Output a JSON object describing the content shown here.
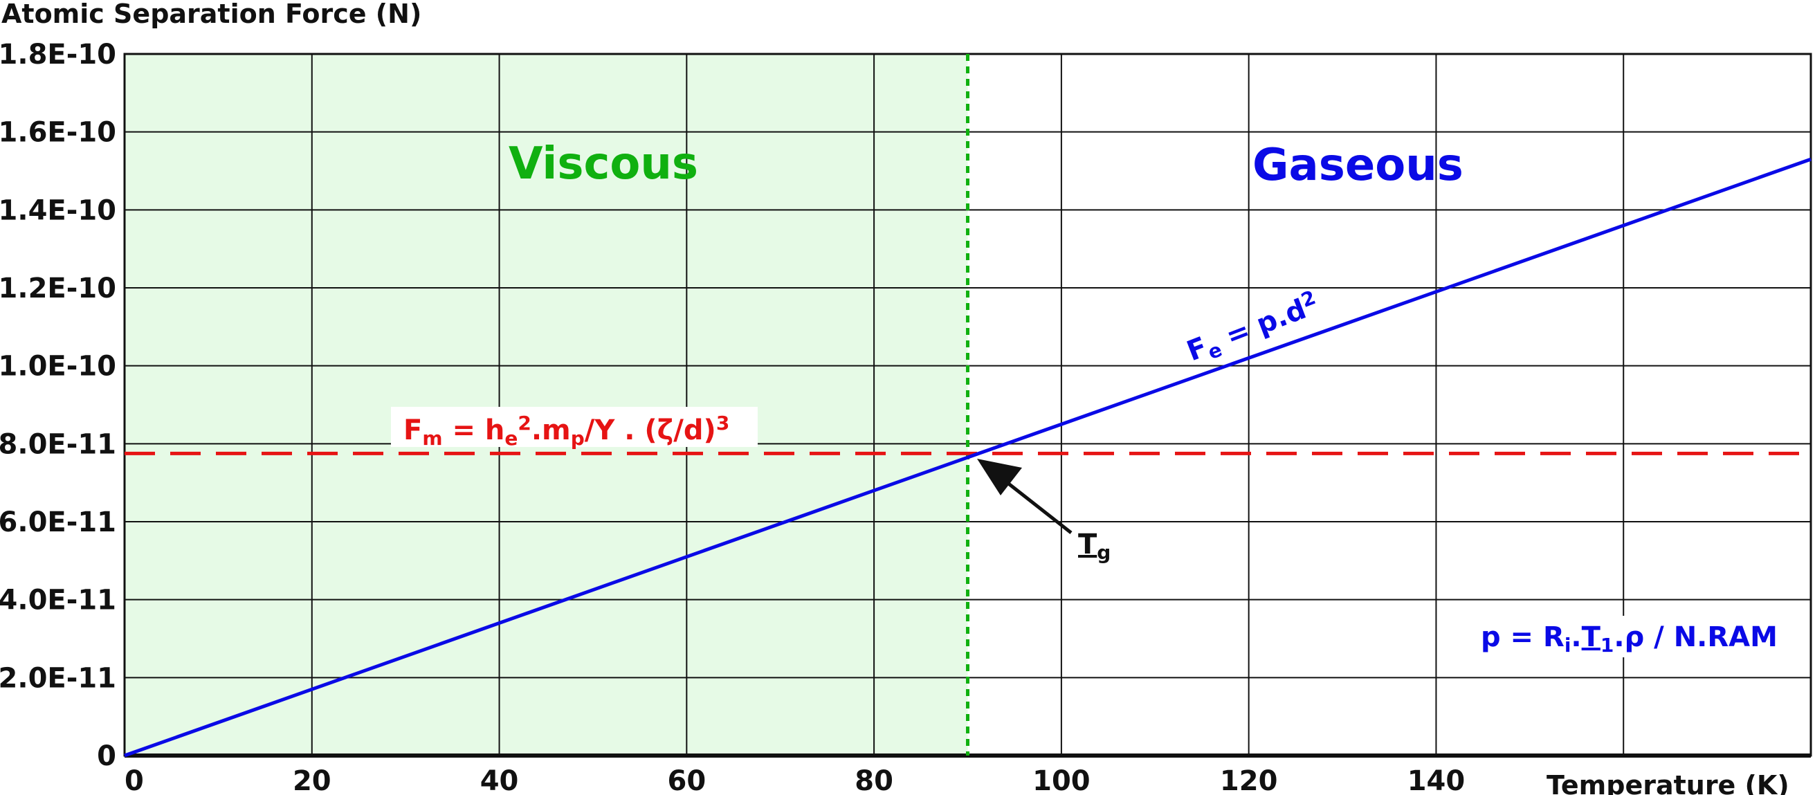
{
  "chart_data": {
    "type": "line",
    "ylabel": "Atomic Separation Force (N)",
    "xlabel": "Temperature (K)",
    "xlim": [
      0,
      180
    ],
    "ylim": [
      0,
      1.8e-10
    ],
    "x_ticks": [
      {
        "value": 0,
        "label": "0"
      },
      {
        "value": 20,
        "label": "20"
      },
      {
        "value": 40,
        "label": "40"
      },
      {
        "value": 60,
        "label": "60"
      },
      {
        "value": 80,
        "label": "80"
      },
      {
        "value": 100,
        "label": "100"
      },
      {
        "value": 120,
        "label": "120"
      },
      {
        "value": 140,
        "label": "140"
      }
    ],
    "x_gridlines": [
      20,
      40,
      60,
      80,
      100,
      120,
      140,
      160
    ],
    "y_ticks": [
      {
        "value": 0,
        "label": "0"
      },
      {
        "value": 2e-11,
        "label": "2.0E-11"
      },
      {
        "value": 4e-11,
        "label": "4.0E-11"
      },
      {
        "value": 6e-11,
        "label": "6.0E-11"
      },
      {
        "value": 8e-11,
        "label": "8.0E-11"
      },
      {
        "value": 1e-10,
        "label": "1.0E-10"
      },
      {
        "value": 1.2e-10,
        "label": "1.2E-10"
      },
      {
        "value": 1.4e-10,
        "label": "1.4E-10"
      },
      {
        "value": 1.6e-10,
        "label": "1.6E-10"
      },
      {
        "value": 1.8e-10,
        "label": "1.8E-10"
      }
    ],
    "grid": true,
    "series": [
      {
        "name": "Fe = p.d2",
        "style": "solid",
        "color": "#0a0ae6",
        "x": [
          0,
          180
        ],
        "y": [
          0,
          1.53e-10
        ]
      },
      {
        "name": "Fm = he2.mp/Y . (ζ/d)3",
        "style": "dashed",
        "color": "#e61414",
        "x": [
          0,
          180
        ],
        "y": [
          7.75e-11,
          7.75e-11
        ]
      }
    ],
    "vertical_line": {
      "x": 90,
      "style": "dotted",
      "color": "#10b010"
    },
    "shaded_region": {
      "x": [
        0,
        90
      ],
      "color": "#e6fae6"
    },
    "regions": [
      {
        "label": "Viscous",
        "color": "#10b010"
      },
      {
        "label": "Gaseous",
        "color": "#0a0ae6"
      }
    ],
    "annotations": {
      "fe_formula": {
        "color": "#0a0ae6",
        "F": "F",
        "e": "e",
        "rest": " = p.d",
        "two": "2"
      },
      "fm_formula": {
        "color": "#e61414",
        "F": "F",
        "m": "m",
        "eq_h": " = h",
        "e": "e",
        "two": "2",
        "dot_m": ".m",
        "p": "p",
        "rest": "/Y . (ζ/d)",
        "three": "3"
      },
      "tg": {
        "T": "T",
        "g": "g",
        "color": "#111111"
      },
      "p_formula": {
        "color": "#0a0ae6",
        "p_eq_R": "p = R",
        "i": "i",
        "dot": ".",
        "T": "T",
        "one": "1",
        "rest": ".ρ / N.RAM"
      }
    }
  }
}
